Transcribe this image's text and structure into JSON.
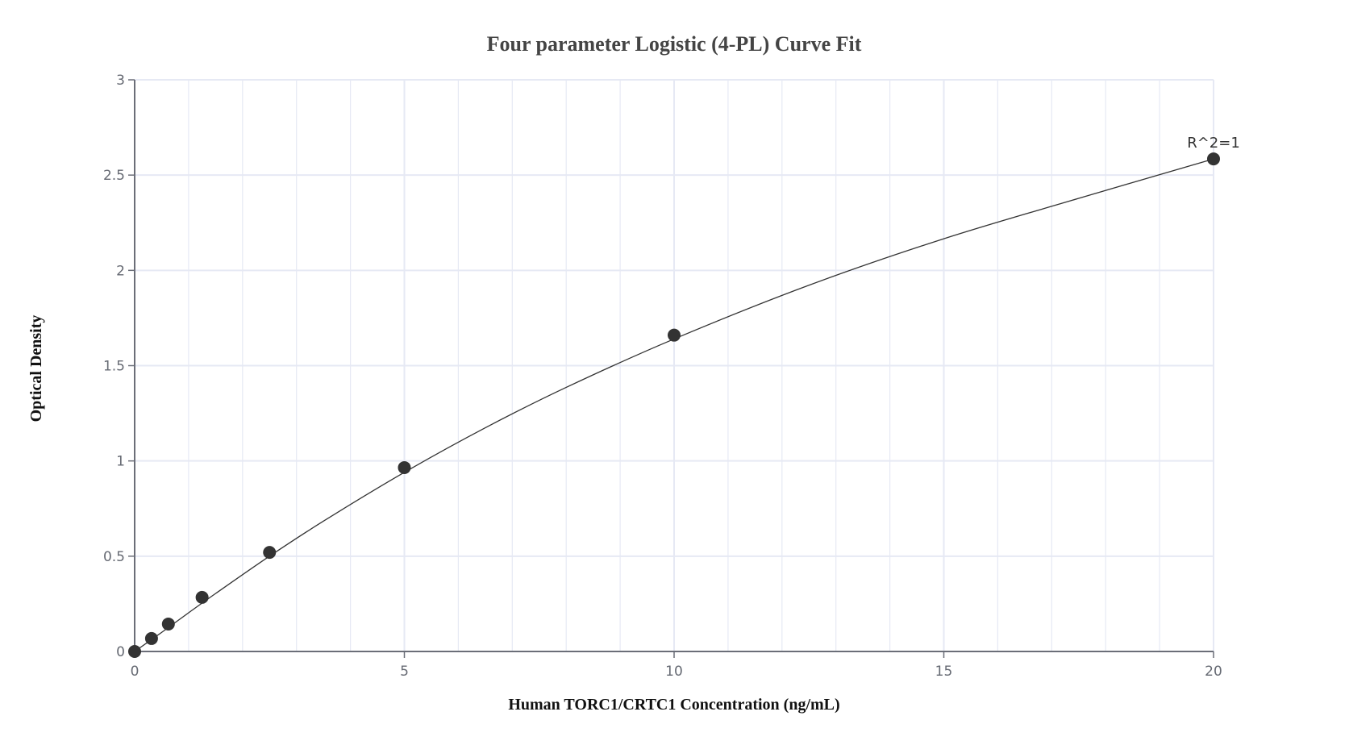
{
  "chart_data": {
    "type": "scatter",
    "title": "Four parameter Logistic (4-PL) Curve Fit",
    "xlabel": "Human TORC1/CRTC1 Concentration (ng/mL)",
    "ylabel": "Optical Density",
    "xlim": [
      0,
      20
    ],
    "ylim": [
      0,
      3
    ],
    "x_ticks": [
      0,
      5,
      10,
      15,
      20
    ],
    "y_ticks": [
      0,
      0.5,
      1,
      1.5,
      2,
      2.5,
      3
    ],
    "x_tick_labels": [
      "0",
      "5",
      "10",
      "15",
      "20"
    ],
    "y_tick_labels": [
      "0",
      "0.5",
      "1",
      "1.5",
      "2",
      "2.5",
      "3"
    ],
    "x_minor_step": 1,
    "grid": true,
    "legend": null,
    "series": [
      {
        "name": "Standards",
        "kind": "markers",
        "x": [
          0,
          0.3125,
          0.625,
          1.25,
          2.5,
          5,
          10,
          20
        ],
        "y": [
          0.0,
          0.068,
          0.144,
          0.284,
          0.52,
          0.965,
          1.66,
          2.585
        ]
      },
      {
        "name": "4-PL fit",
        "kind": "line",
        "x": [
          0,
          0.5,
          1,
          1.5,
          2.5,
          3.5,
          5,
          6.5,
          8,
          10,
          12.5,
          15,
          17.5,
          20
        ],
        "y": [
          0,
          0.1,
          0.203,
          0.304,
          0.5,
          0.684,
          0.94,
          1.174,
          1.386,
          1.64,
          1.922,
          2.166,
          2.378,
          2.585
        ]
      }
    ],
    "annotations": [
      {
        "text": "R^2=1",
        "x": 20,
        "y": 2.585
      }
    ]
  },
  "colors": {
    "marker": "#333333",
    "line": "#333333",
    "grid": "#e6e9f4",
    "axis": "#6b6e78"
  }
}
